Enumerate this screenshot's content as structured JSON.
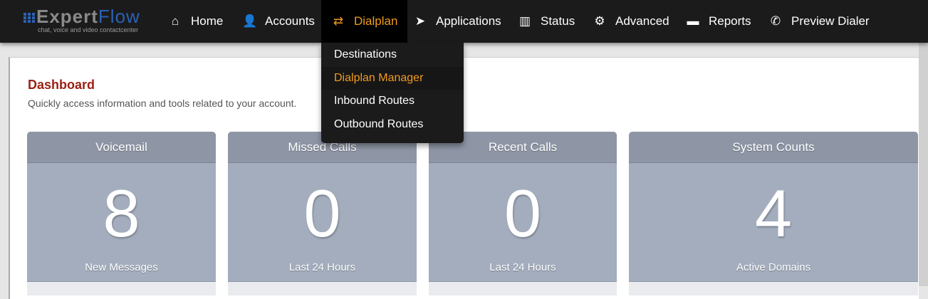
{
  "brand": {
    "name_a": "Expert",
    "name_b": "Flow",
    "tagline": "chat, voice and video contactcenter"
  },
  "nav": [
    {
      "label": "Home",
      "icon": "home-icon",
      "glyph": "⌂"
    },
    {
      "label": "Accounts",
      "icon": "user-icon",
      "glyph": "👤"
    },
    {
      "label": "Dialplan",
      "icon": "exchange-icon",
      "glyph": "⇄",
      "active": true
    },
    {
      "label": "Applications",
      "icon": "paper-plane-icon",
      "glyph": "➤"
    },
    {
      "label": "Status",
      "icon": "bar-chart-icon",
      "glyph": "▥"
    },
    {
      "label": "Advanced",
      "icon": "gear-icon",
      "glyph": "⚙"
    },
    {
      "label": "Reports",
      "icon": "window-icon",
      "glyph": "▬"
    },
    {
      "label": "Preview Dialer",
      "icon": "phone-icon",
      "glyph": "✆"
    }
  ],
  "dropdown": [
    "Destinations",
    "Dialplan Manager",
    "Inbound Routes",
    "Outbound Routes"
  ],
  "dropdown_highlight": "Dialplan Manager",
  "page": {
    "title": "Dashboard",
    "subtitle": "Quickly access information and tools related to your account."
  },
  "cards": [
    {
      "title": "Voicemail",
      "value": "8",
      "footer": "New Messages"
    },
    {
      "title": "Missed Calls",
      "value": "0",
      "footer": "Last 24 Hours"
    },
    {
      "title": "Recent Calls",
      "value": "0",
      "footer": "Last 24 Hours"
    },
    {
      "title": "System Counts",
      "value": "4",
      "footer": "Active Domains"
    }
  ],
  "colors": {
    "accent": "#f29b1d",
    "title": "#9a1f14",
    "card_header": "#8e96a6",
    "card_body": "#a3adbd",
    "navbar": "#1b1b1b"
  }
}
